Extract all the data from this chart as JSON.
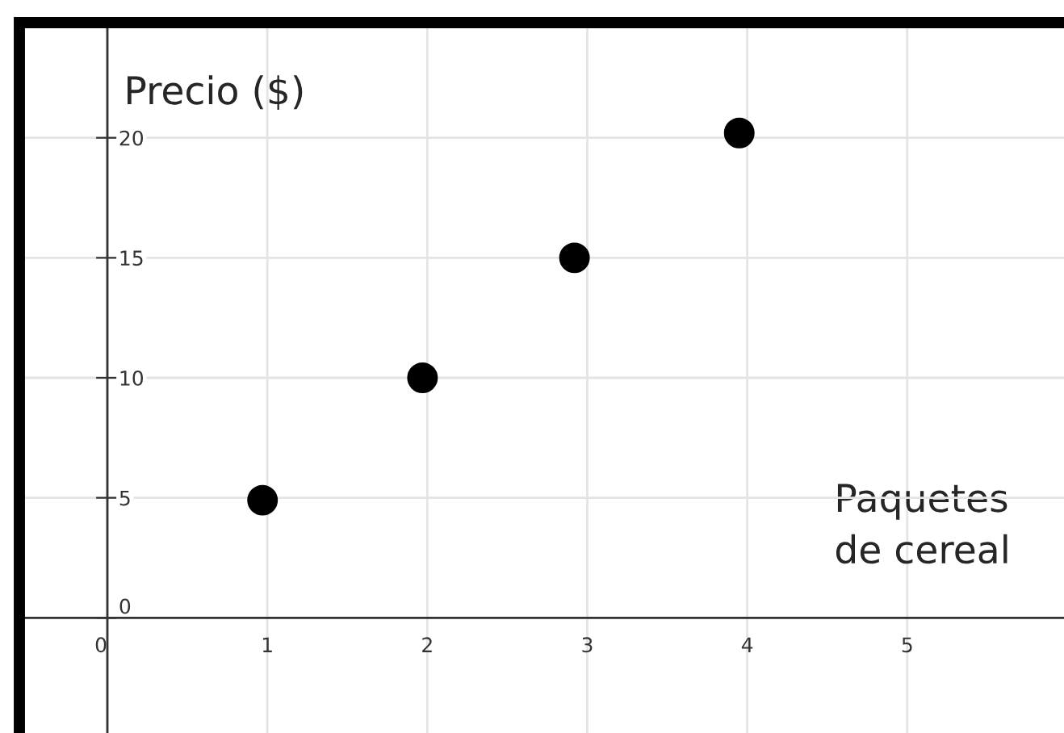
{
  "chart_data": {
    "type": "scatter",
    "xlabel": "Paquetes\nde cereal",
    "ylabel": "Precio ($)",
    "x": [
      0.97,
      1.97,
      2.92,
      3.95
    ],
    "series": [
      {
        "color": "#000000",
        "values": [
          4.9,
          10,
          15,
          20.2
        ]
      }
    ],
    "xlim": [
      -0.55,
      5.98
    ],
    "ylim": [
      -4.8,
      24.8
    ],
    "xticks": [
      0,
      1,
      2,
      3,
      4,
      5
    ],
    "yticks": [
      0,
      5,
      10,
      15,
      20
    ],
    "grid": true,
    "marker": "circle",
    "legend": false
  }
}
